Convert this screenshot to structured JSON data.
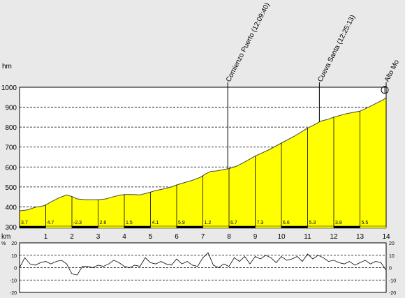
{
  "chart_data": {
    "type": "area",
    "title": "",
    "elevation": {
      "unit": "hm",
      "ylim": [
        300,
        1000
      ],
      "y_ticks": [
        300,
        400,
        500,
        600,
        700,
        800,
        900,
        1000
      ],
      "x_unit": "km",
      "xlim": [
        0,
        14
      ],
      "x_ticks": [
        "1",
        "2",
        "3",
        "4",
        "5",
        "6",
        "7",
        "8",
        "9",
        "10",
        "11",
        "12",
        "13",
        "14"
      ],
      "grid": true,
      "fill_color": "#ffff00",
      "points": [
        [
          0,
          380
        ],
        [
          0.3,
          385
        ],
        [
          0.6,
          398
        ],
        [
          0.9,
          405
        ],
        [
          1.0,
          410
        ],
        [
          1.2,
          425
        ],
        [
          1.5,
          445
        ],
        [
          1.8,
          460
        ],
        [
          2.0,
          452
        ],
        [
          2.2,
          440
        ],
        [
          2.5,
          436
        ],
        [
          3.0,
          436
        ],
        [
          3.3,
          440
        ],
        [
          3.5,
          448
        ],
        [
          3.8,
          458
        ],
        [
          4.0,
          462
        ],
        [
          4.3,
          462
        ],
        [
          4.6,
          460
        ],
        [
          4.9,
          470
        ],
        [
          5.2,
          482
        ],
        [
          5.5,
          490
        ],
        [
          5.8,
          500
        ],
        [
          6.0,
          510
        ],
        [
          6.3,
          522
        ],
        [
          6.6,
          533
        ],
        [
          6.9,
          548
        ],
        [
          7.1,
          565
        ],
        [
          7.3,
          578
        ],
        [
          7.5,
          580
        ],
        [
          7.7,
          585
        ],
        [
          8.0,
          592
        ],
        [
          8.3,
          605
        ],
        [
          8.6,
          625
        ],
        [
          9.0,
          655
        ],
        [
          9.5,
          685
        ],
        [
          10.0,
          720
        ],
        [
          10.5,
          755
        ],
        [
          11.0,
          795
        ],
        [
          11.3,
          815
        ],
        [
          11.5,
          830
        ],
        [
          11.8,
          840
        ],
        [
          12.0,
          850
        ],
        [
          12.5,
          868
        ],
        [
          13.0,
          880
        ],
        [
          13.3,
          898
        ],
        [
          13.6,
          918
        ],
        [
          13.9,
          938
        ],
        [
          14.0,
          948
        ]
      ],
      "km_markers": [
        1,
        2,
        3,
        4,
        5,
        6,
        7,
        8,
        9,
        10,
        11,
        12,
        13,
        14
      ],
      "gradients": [
        "3.7",
        "4.7",
        "-2.3",
        "2.6",
        "1.5",
        "4.1",
        "5.9",
        "1.2",
        "6.7",
        "7.3",
        "6.6",
        "5.3",
        "3.8",
        "5.5"
      ],
      "waypoints": [
        {
          "km": 7.95,
          "label": "Comienzo Puerto (12:09:40)"
        },
        {
          "km": 11.45,
          "label": "Cueva Santa (12:25:13)"
        },
        {
          "km": 14.0,
          "label": "Alto Mo"
        }
      ]
    },
    "slope": {
      "unit": "%",
      "ylim": [
        -20,
        20
      ],
      "y_ticks": [
        20,
        10,
        0,
        -10,
        -20
      ],
      "grid": true,
      "series": {
        "x": [
          0,
          0.2,
          0.4,
          0.6,
          0.8,
          1.0,
          1.2,
          1.4,
          1.6,
          1.8,
          2.0,
          2.2,
          2.4,
          2.6,
          2.8,
          3.0,
          3.2,
          3.4,
          3.6,
          3.8,
          4.0,
          4.2,
          4.4,
          4.6,
          4.8,
          5.0,
          5.2,
          5.4,
          5.6,
          5.8,
          6.0,
          6.2,
          6.4,
          6.6,
          6.8,
          7.0,
          7.2,
          7.4,
          7.6,
          7.8,
          8.0,
          8.2,
          8.4,
          8.6,
          8.8,
          9.0,
          9.2,
          9.4,
          9.6,
          9.8,
          10.0,
          10.2,
          10.4,
          10.6,
          10.8,
          11.0,
          11.2,
          11.4,
          11.6,
          11.8,
          12.0,
          12.2,
          12.4,
          12.6,
          12.8,
          13.0,
          13.2,
          13.4,
          13.6,
          13.8,
          14.0
        ],
        "y": [
          0,
          8,
          3,
          2,
          4,
          5,
          3,
          5,
          6,
          3,
          -5,
          -6,
          1,
          1,
          0,
          2,
          1,
          3,
          6,
          4,
          1,
          0,
          2,
          1,
          8,
          4,
          3,
          5,
          3,
          2,
          7,
          3,
          5,
          2,
          1,
          8,
          12,
          2,
          0,
          3,
          1,
          8,
          5,
          9,
          3,
          9,
          7,
          10,
          8,
          4,
          9,
          6,
          7,
          9,
          5,
          11,
          7,
          10,
          8,
          5,
          6,
          4,
          3,
          5,
          2,
          4,
          6,
          3,
          5,
          4,
          -2
        ]
      }
    }
  }
}
